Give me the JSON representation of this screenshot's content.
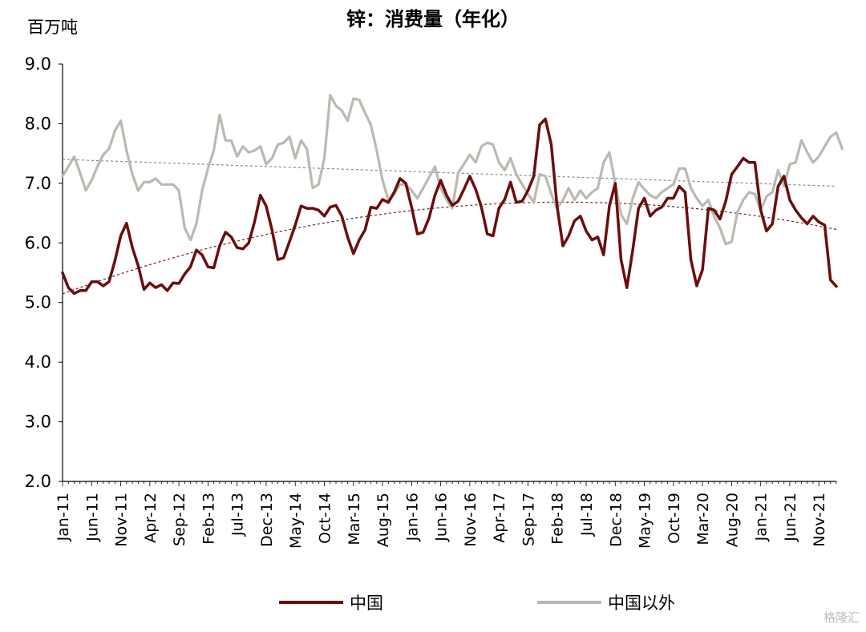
{
  "chart_data": {
    "type": "line",
    "title": "锌：消费量（年化）",
    "unit_label": "百万吨",
    "ylim": [
      2.0,
      9.0
    ],
    "y_ticks": [
      "2.0",
      "3.0",
      "4.0",
      "5.0",
      "6.0",
      "7.0",
      "8.0",
      "9.0"
    ],
    "x_tick_labels": [
      "Jan-11",
      "Jun-11",
      "Nov-11",
      "Apr-12",
      "Sep-12",
      "Feb-13",
      "Jul-13",
      "Dec-13",
      "May-14",
      "Oct-14",
      "Mar-15",
      "Aug-15",
      "Jan-16",
      "Jun-16",
      "Nov-16",
      "Apr-17",
      "Sep-17",
      "Feb-18",
      "Jul-18",
      "Dec-18",
      "May-19",
      "Oct-19",
      "Mar-20",
      "Aug-20",
      "Jan-21",
      "Jun-21",
      "Nov-21"
    ],
    "start_month": "Jan-11",
    "legend_position": "bottom",
    "series": [
      {
        "name": "中国",
        "color": "#6b0d0d",
        "trend": "polynomial",
        "trend_style": "dashed",
        "values": [
          5.5,
          5.25,
          5.15,
          5.2,
          5.2,
          5.35,
          5.35,
          5.28,
          5.35,
          5.7,
          6.12,
          6.33,
          5.92,
          5.62,
          5.22,
          5.33,
          5.25,
          5.3,
          5.2,
          5.33,
          5.32,
          5.48,
          5.6,
          5.88,
          5.8,
          5.6,
          5.58,
          5.95,
          6.18,
          6.1,
          5.92,
          5.9,
          6.0,
          6.35,
          6.8,
          6.62,
          6.22,
          5.72,
          5.75,
          6.02,
          6.3,
          6.62,
          6.58,
          6.58,
          6.55,
          6.45,
          6.6,
          6.63,
          6.45,
          6.1,
          5.82,
          6.05,
          6.22,
          6.6,
          6.58,
          6.73,
          6.68,
          6.85,
          7.08,
          7.0,
          6.6,
          6.15,
          6.18,
          6.42,
          6.8,
          7.05,
          6.8,
          6.63,
          6.7,
          6.9,
          7.12,
          6.9,
          6.6,
          6.15,
          6.12,
          6.58,
          6.73,
          7.02,
          6.68,
          6.7,
          6.88,
          7.12,
          7.98,
          8.08,
          7.65,
          6.62,
          5.95,
          6.12,
          6.37,
          6.45,
          6.2,
          6.05,
          6.1,
          5.8,
          6.62,
          7.0,
          5.72,
          5.25,
          5.88,
          6.58,
          6.75,
          6.45,
          6.55,
          6.6,
          6.75,
          6.75,
          6.95,
          6.85,
          5.72,
          5.28,
          5.55,
          6.58,
          6.55,
          6.4,
          6.7,
          7.15,
          7.28,
          7.42,
          7.35,
          7.35,
          6.55,
          6.2,
          6.32,
          6.95,
          7.12,
          6.72,
          6.55,
          6.42,
          6.32,
          6.45,
          6.35,
          6.3,
          5.38,
          5.27
        ]
      },
      {
        "name": "中国以外",
        "color": "#b9bab0",
        "trend": "linear",
        "trend_style": "dashed",
        "values": [
          7.12,
          7.28,
          7.45,
          7.18,
          6.88,
          7.05,
          7.28,
          7.48,
          7.58,
          7.88,
          8.05,
          7.55,
          7.15,
          6.88,
          7.02,
          7.02,
          7.08,
          6.98,
          6.98,
          6.98,
          6.88,
          6.25,
          6.05,
          6.32,
          6.88,
          7.25,
          7.55,
          8.15,
          7.72,
          7.72,
          7.45,
          7.62,
          7.52,
          7.55,
          7.62,
          7.32,
          7.42,
          7.65,
          7.68,
          7.78,
          7.42,
          7.72,
          7.58,
          6.92,
          6.98,
          7.42,
          8.48,
          8.3,
          8.22,
          8.05,
          8.42,
          8.4,
          8.18,
          7.98,
          7.55,
          7.05,
          6.72,
          6.82,
          6.98,
          6.98,
          6.88,
          6.75,
          6.92,
          7.1,
          7.28,
          6.92,
          6.72,
          6.58,
          7.18,
          7.32,
          7.48,
          7.35,
          7.62,
          7.68,
          7.65,
          7.35,
          7.22,
          7.42,
          7.15,
          6.98,
          6.82,
          6.68,
          7.15,
          7.12,
          6.82,
          6.58,
          6.72,
          6.92,
          6.72,
          6.88,
          6.75,
          6.85,
          6.92,
          7.35,
          7.52,
          7.0,
          6.48,
          6.32,
          6.75,
          7.02,
          6.9,
          6.8,
          6.75,
          6.85,
          6.92,
          6.98,
          7.25,
          7.25,
          6.92,
          6.75,
          6.62,
          6.72,
          6.45,
          6.25,
          5.98,
          6.02,
          6.52,
          6.72,
          6.85,
          6.82,
          6.55,
          6.78,
          6.85,
          7.22,
          6.95,
          7.32,
          7.35,
          7.72,
          7.52,
          7.35,
          7.45,
          7.62,
          7.78,
          7.85,
          7.58
        ]
      }
    ]
  },
  "watermark": "格隆汇"
}
